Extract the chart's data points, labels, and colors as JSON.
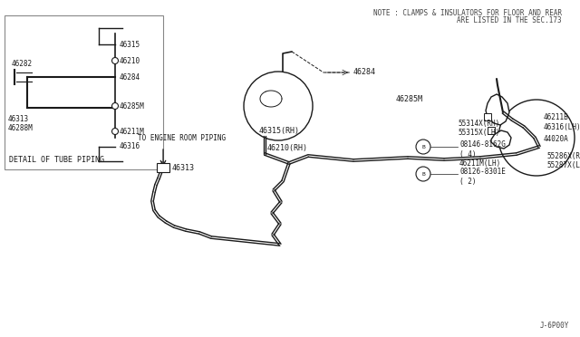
{
  "bg_color": "#ffffff",
  "line_color": "#1a1a1a",
  "text_color": "#444444",
  "fig_width": 6.4,
  "fig_height": 3.72,
  "note_line1": "NOTE : CLAMPS & INSULATORS FOR FLOOR AND REAR",
  "note_line2": "ARE LISTED IN THE SEC.173",
  "footer_text": "J-6P00Y",
  "inset_label": "DETAIL OF TUBE PIPING"
}
